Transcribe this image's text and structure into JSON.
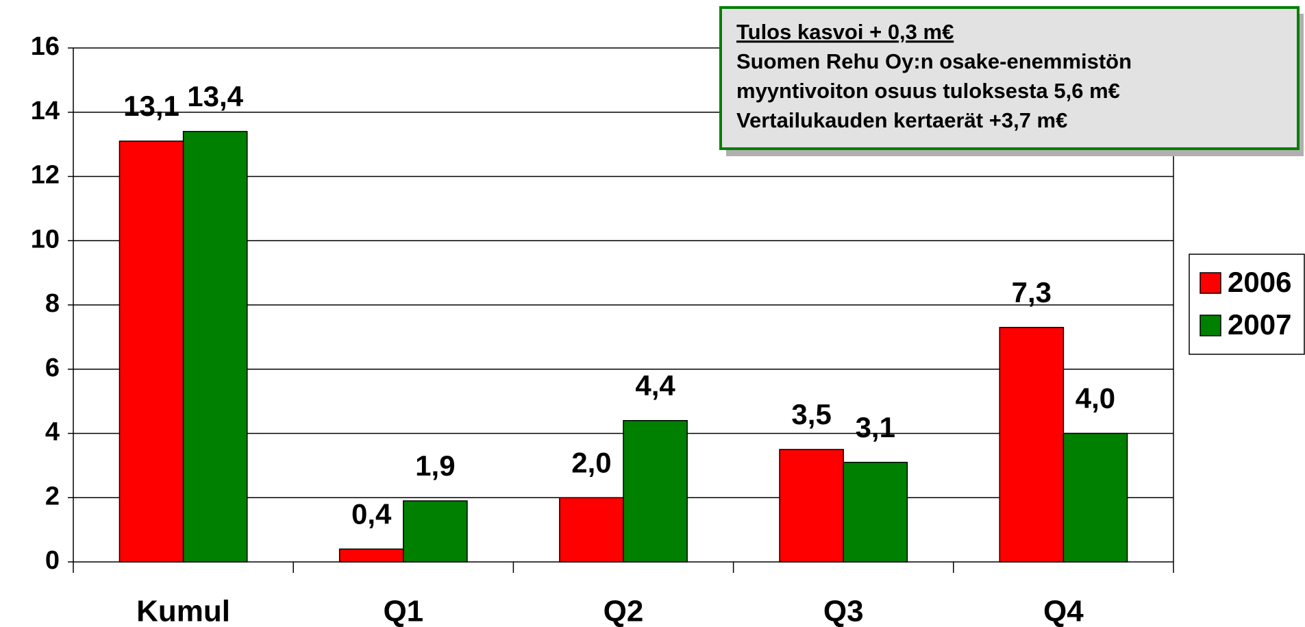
{
  "chart_data": {
    "type": "bar",
    "categories": [
      "Kumul",
      "Q1",
      "Q2",
      "Q3",
      "Q4"
    ],
    "series": [
      {
        "name": "2006",
        "color": "#ff0000",
        "values": [
          13.1,
          0.4,
          2.0,
          3.5,
          7.3
        ],
        "value_labels": [
          "13,1",
          "0,4",
          "2,0",
          "3,5",
          "7,3"
        ]
      },
      {
        "name": "2007",
        "color": "#008000",
        "values": [
          13.4,
          1.9,
          4.4,
          3.1,
          4.0
        ],
        "value_labels": [
          "13,4",
          "1,9",
          "4,4",
          "3,1",
          "4,0"
        ]
      }
    ],
    "ylim": [
      0,
      16
    ],
    "yticks": [
      0,
      2,
      4,
      6,
      8,
      10,
      12,
      14,
      16
    ],
    "grid": true,
    "legend": "right",
    "annotation": [
      "Tulos kasvoi + 0,3 m€",
      "Suomen Rehu Oy:n osake-enemmistön",
      "myyntivoiton osuus tuloksesta 5,6 m€",
      "Vertailukauden kertaerät +3,7 m€"
    ]
  }
}
